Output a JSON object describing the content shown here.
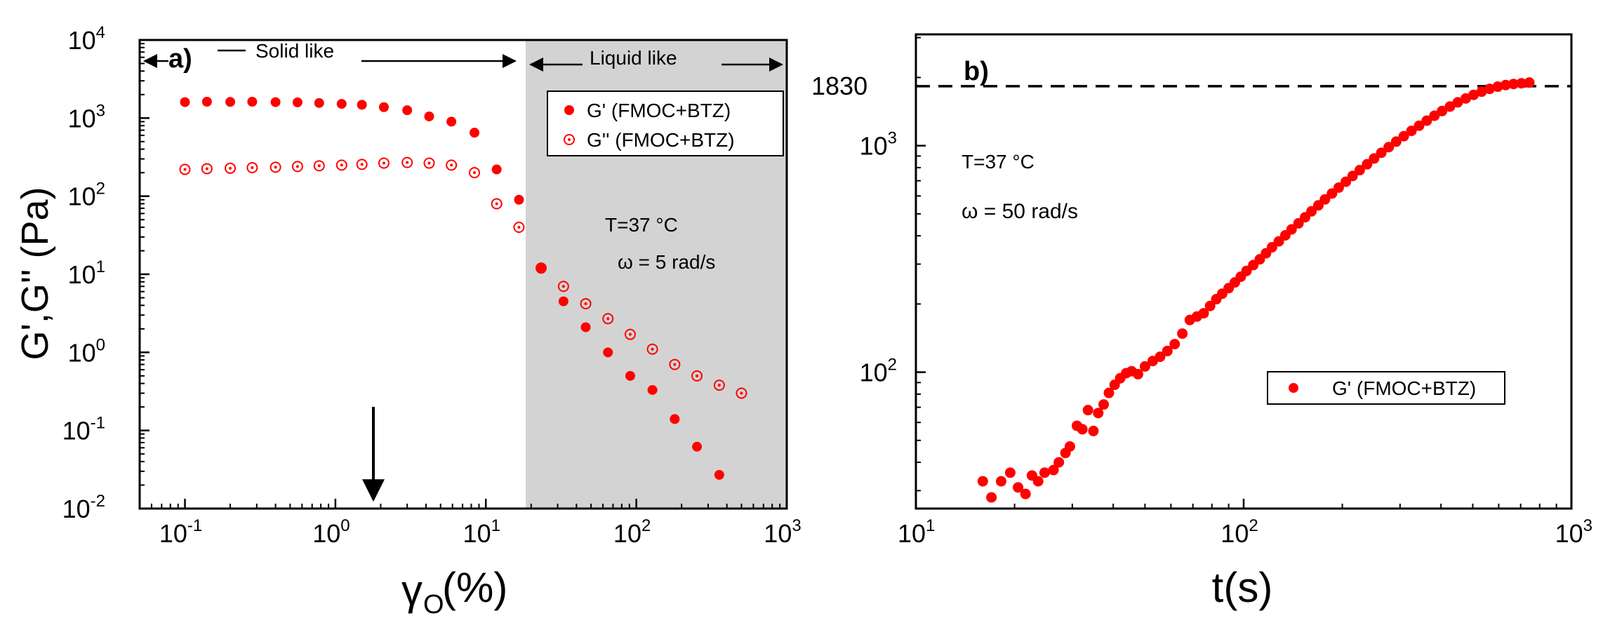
{
  "chart_data": [
    {
      "type": "scatter",
      "panel": "a)",
      "xscale": "log",
      "yscale": "log",
      "xlim": [
        0.05,
        1000
      ],
      "ylim": [
        0.01,
        10000
      ],
      "xticks": [
        "10",
        "10",
        "10",
        "10",
        "10"
      ],
      "xtick_exp": [
        "-1",
        "0",
        "1",
        "2",
        "3"
      ],
      "yticks": [
        "10",
        "10",
        "10",
        "10",
        "10",
        "10",
        "10"
      ],
      "ytick_exp": [
        "-2",
        "-1",
        "0",
        "1",
        "2",
        "3",
        "4"
      ],
      "xlabel": "γ",
      "xlabel_sub": "O",
      "xlabel_unit": "(%)",
      "ylabel": "G',G'' (Pa)",
      "shaded_region_x": [
        20,
        1000
      ],
      "region_labels": {
        "solid": "Solid like",
        "liquid": "Liquid like"
      },
      "annotations": [
        "T=37 °C",
        "ω = 5 rad/s"
      ],
      "arrow_at_x": 1.9,
      "series": [
        {
          "name": "G' (FMOC+BTZ)",
          "marker": "filled",
          "x": [
            0.1,
            0.14,
            0.2,
            0.28,
            0.4,
            0.56,
            0.78,
            1.1,
            1.5,
            2.1,
            3.0,
            4.2,
            5.9,
            8.4,
            11.8,
            16.6,
            23.3,
            32.8,
            46.1,
            64.8,
            91.1,
            128,
            180,
            253,
            356
          ],
          "y": [
            1600,
            1620,
            1610,
            1620,
            1600,
            1590,
            1560,
            1520,
            1480,
            1380,
            1260,
            1050,
            900,
            650,
            220,
            90,
            12,
            4.5,
            2.1,
            1.0,
            0.5,
            0.33,
            0.14,
            0.062,
            0.027
          ]
        },
        {
          "name": "G'' (FMOC+BTZ)",
          "marker": "open-dot",
          "x": [
            0.1,
            0.14,
            0.2,
            0.28,
            0.4,
            0.56,
            0.78,
            1.1,
            1.5,
            2.1,
            3.0,
            4.2,
            5.9,
            8.4,
            11.8,
            16.6,
            23.3,
            32.8,
            46.1,
            64.8,
            91.1,
            128,
            180,
            253,
            356,
            500
          ],
          "y": [
            220,
            225,
            228,
            232,
            235,
            240,
            245,
            250,
            255,
            265,
            270,
            265,
            250,
            200,
            80,
            40,
            12,
            7,
            4.2,
            2.7,
            1.7,
            1.1,
            0.7,
            0.5,
            0.38,
            0.3
          ]
        }
      ]
    },
    {
      "type": "scatter",
      "panel": "b)",
      "xscale": "log",
      "yscale": "log",
      "xlim": [
        10,
        1000
      ],
      "ylim": [
        25,
        3100
      ],
      "xticks": [
        "10",
        "10",
        "10"
      ],
      "xtick_exp": [
        "1",
        "2",
        "3"
      ],
      "yticks": [
        "10",
        "10"
      ],
      "ytick_exp": [
        "2",
        "3"
      ],
      "xlabel": "t(s)",
      "ylabel": "",
      "plateau_value": 1830,
      "plateau_label": "1830",
      "annotations": [
        "T=37 °C",
        "ω = 50 rad/s"
      ],
      "series": [
        {
          "name": "G' (FMOC+BTZ)",
          "marker": "filled",
          "x": [
            16.0,
            17.0,
            18.2,
            19.4,
            20.5,
            21.6,
            22.6,
            23.6,
            24.7,
            26.3,
            27.3,
            28.6,
            29.5,
            31.0,
            32.2,
            33.5,
            34.8,
            36.0,
            37.4,
            38.8,
            40.4,
            42.0,
            43.8,
            45.5,
            47.6,
            50.0,
            52.8,
            55.6,
            58.5,
            61.6,
            65.0,
            68.5,
            72.0,
            75.5,
            79.0,
            82.5,
            86.0,
            90.0,
            94.0,
            98.0,
            102,
            107,
            112,
            117,
            122,
            128,
            134,
            140,
            147,
            154,
            161,
            169,
            177,
            186,
            195,
            205,
            215,
            226,
            238,
            250,
            263,
            277,
            292,
            308,
            325,
            343,
            362,
            382,
            403,
            426,
            450,
            476,
            503,
            532,
            563,
            596,
            630,
            666,
            704,
            744
          ],
          "y": [
            33,
            28,
            33,
            36,
            31,
            29,
            35,
            33,
            36,
            37,
            40,
            44,
            47,
            58,
            56,
            68,
            55,
            66,
            72,
            81,
            88,
            94,
            99,
            101,
            98,
            106,
            112,
            117,
            124,
            133,
            148,
            170,
            176,
            182,
            196,
            210,
            222,
            235,
            249,
            264,
            280,
            297,
            315,
            335,
            356,
            378,
            402,
            427,
            454,
            483,
            513,
            545,
            579,
            615,
            653,
            693,
            735,
            780,
            828,
            878,
            930,
            985,
            1042,
            1101,
            1162,
            1225,
            1290,
            1356,
            1422,
            1488,
            1553,
            1616,
            1676,
            1731,
            1781,
            1822,
            1852,
            1872,
            1886,
            1900
          ]
        }
      ]
    }
  ]
}
